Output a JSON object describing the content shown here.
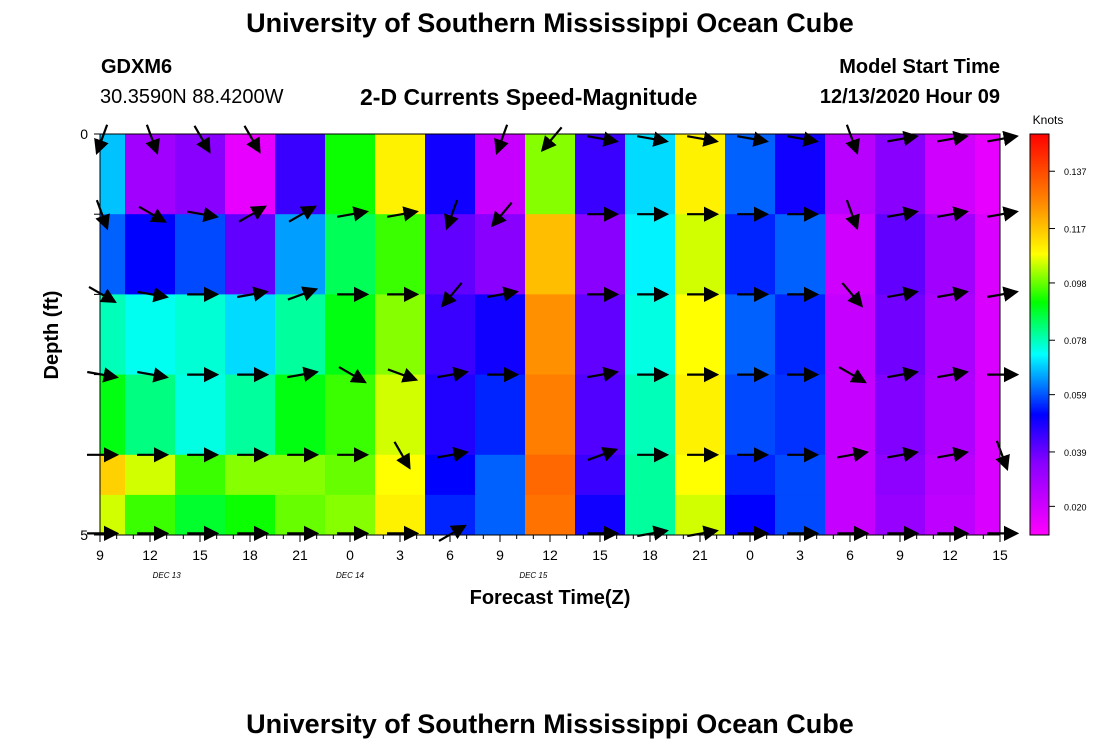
{
  "page": {
    "title_top": "University of Southern Mississippi Ocean Cube",
    "title_bottom": "University of Southern Mississippi Ocean Cube",
    "station_id": "GDXM6",
    "station_coords": "30.3590N 88.4200W",
    "chart_title": "2-D Currents Speed-Magnitude",
    "model_start_label": "Model Start Time",
    "model_start_value": "12/13/2020 Hour 09"
  },
  "chart_data": {
    "type": "heatmap",
    "title": "2-D Currents Speed-Magnitude",
    "xlabel": "Forecast Time(Z)",
    "ylabel": "Depth (ft)",
    "x_tick_labels": [
      "9",
      "12",
      "15",
      "18",
      "21",
      "0",
      "3",
      "6",
      "9",
      "12",
      "15",
      "18",
      "21",
      "0",
      "3",
      "6",
      "9",
      "12",
      "15"
    ],
    "date_labels": [
      {
        "text": "DEC 13",
        "tick_index": 4
      },
      {
        "text": "DEC 14",
        "tick_index": 15
      },
      {
        "text": "DEC 15",
        "tick_index": 26
      }
    ],
    "y_tick_labels": [
      "0",
      "",
      "",
      "",
      "",
      "5"
    ],
    "ylim": [
      0,
      5
    ],
    "colorbar": {
      "unit": "Knots",
      "tick_labels": [
        "0.137",
        "0.117",
        "0.098",
        "0.078",
        "0.059",
        "0.039",
        "0.020"
      ],
      "tick_values": [
        0.137,
        0.117,
        0.098,
        0.078,
        0.059,
        0.039,
        0.02
      ],
      "range": [
        0.01,
        0.15
      ]
    },
    "time_hours_from_start": [
      0,
      3,
      6,
      9,
      12,
      15,
      18,
      21,
      24,
      27,
      30,
      33,
      36,
      39,
      42,
      45,
      48,
      51,
      54
    ],
    "depth_rows": [
      0.5,
      1.5,
      2.5,
      3.5,
      4.5,
      5.0
    ],
    "speed_knots": [
      [
        0.068,
        0.03,
        0.035,
        0.015,
        0.045,
        0.092,
        0.11,
        0.05,
        0.022,
        0.1,
        0.045,
        0.07,
        0.11,
        0.06,
        0.05,
        0.025,
        0.035,
        0.02,
        0.015
      ],
      [
        0.06,
        0.052,
        0.058,
        0.04,
        0.065,
        0.085,
        0.095,
        0.04,
        0.035,
        0.118,
        0.035,
        0.072,
        0.105,
        0.055,
        0.06,
        0.02,
        0.04,
        0.03,
        0.018
      ],
      [
        0.078,
        0.074,
        0.076,
        0.07,
        0.08,
        0.09,
        0.1,
        0.045,
        0.05,
        0.125,
        0.04,
        0.075,
        0.108,
        0.06,
        0.055,
        0.022,
        0.038,
        0.028,
        0.018
      ],
      [
        0.09,
        0.082,
        0.075,
        0.08,
        0.09,
        0.095,
        0.105,
        0.048,
        0.055,
        0.128,
        0.042,
        0.078,
        0.11,
        0.058,
        0.056,
        0.022,
        0.036,
        0.027,
        0.018
      ],
      [
        0.115,
        0.105,
        0.095,
        0.1,
        0.1,
        0.098,
        0.108,
        0.052,
        0.06,
        0.132,
        0.045,
        0.08,
        0.108,
        0.055,
        0.058,
        0.022,
        0.034,
        0.025,
        0.018
      ],
      [
        0.105,
        0.095,
        0.088,
        0.092,
        0.098,
        0.1,
        0.11,
        0.055,
        0.06,
        0.13,
        0.05,
        0.08,
        0.105,
        0.052,
        0.058,
        0.022,
        0.032,
        0.024,
        0.018
      ]
    ],
    "vector_direction_deg": [
      [
        200,
        160,
        150,
        150,
        null,
        null,
        null,
        null,
        200,
        220,
        100,
        100,
        100,
        100,
        100,
        160,
        80,
        80,
        80
      ],
      [
        160,
        120,
        100,
        60,
        60,
        80,
        80,
        200,
        220,
        null,
        90,
        90,
        90,
        90,
        90,
        160,
        80,
        80,
        80
      ],
      [
        120,
        100,
        90,
        80,
        70,
        90,
        90,
        220,
        80,
        null,
        90,
        90,
        90,
        90,
        90,
        140,
        80,
        80,
        80
      ],
      [
        100,
        100,
        90,
        90,
        80,
        120,
        110,
        80,
        90,
        null,
        80,
        90,
        90,
        90,
        90,
        120,
        80,
        80,
        90
      ],
      [
        90,
        90,
        90,
        90,
        90,
        90,
        150,
        80,
        null,
        null,
        70,
        90,
        90,
        90,
        90,
        80,
        80,
        80,
        160
      ],
      [
        90,
        90,
        90,
        90,
        90,
        90,
        90,
        60,
        null,
        null,
        90,
        80,
        80,
        90,
        90,
        90,
        90,
        90,
        90
      ]
    ]
  }
}
